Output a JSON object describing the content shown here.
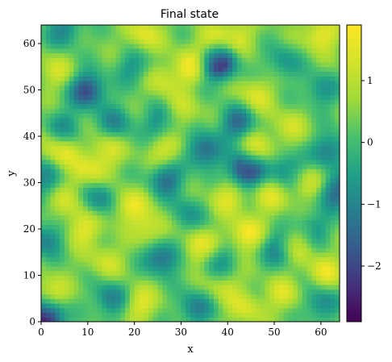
{
  "chart_data": {
    "type": "heatmap",
    "title": "Final state",
    "xlabel": "x",
    "ylabel": "y",
    "xlim": [
      0,
      64
    ],
    "ylim": [
      0,
      64
    ],
    "grid_size": [
      64,
      64
    ],
    "x_ticks": [
      0,
      10,
      20,
      30,
      40,
      50,
      60
    ],
    "y_ticks": [
      0,
      10,
      20,
      30,
      40,
      50,
      60
    ],
    "colormap": "viridis",
    "colorbar": {
      "range": [
        -2.9,
        1.9
      ],
      "ticks": [
        1,
        0,
        -1,
        -2
      ],
      "tick_labels": [
        "1",
        "0",
        "−1",
        "−2"
      ]
    },
    "field_features": [
      {
        "x": 38,
        "y": 56,
        "value": -2.7
      },
      {
        "x": 44,
        "y": 33,
        "value": -2.6
      },
      {
        "x": 1,
        "y": 1,
        "value": -2.9
      },
      {
        "x": 10,
        "y": 50,
        "value": -2.0
      },
      {
        "x": 35,
        "y": 37,
        "value": -1.6
      },
      {
        "x": 42,
        "y": 43,
        "value": -1.4
      },
      {
        "x": 27,
        "y": 31,
        "value": -1.4
      },
      {
        "x": 26,
        "y": 14,
        "value": -1.6
      },
      {
        "x": 63,
        "y": 28,
        "value": -1.5
      },
      {
        "x": 12,
        "y": 27,
        "value": -1.2
      },
      {
        "x": 15,
        "y": 5,
        "value": -1.2
      },
      {
        "x": 53,
        "y": 33,
        "value": -1.1
      },
      {
        "x": 62,
        "y": 37,
        "value": -1.2
      },
      {
        "x": 51,
        "y": 16,
        "value": -1.1
      },
      {
        "x": 26,
        "y": 43,
        "value": -1.0
      },
      {
        "x": 33,
        "y": 3,
        "value": -1.1
      },
      {
        "x": 5,
        "y": 63,
        "value": -1.0
      },
      {
        "x": 60,
        "y": 4,
        "value": -1.0
      },
      {
        "x": 38,
        "y": 13,
        "value": -0.9
      },
      {
        "x": 58,
        "y": 20,
        "value": -0.9
      },
      {
        "x": 5,
        "y": 42,
        "value": -0.8
      },
      {
        "x": 1,
        "y": 18,
        "value": -1.1
      },
      {
        "x": 16,
        "y": 43,
        "value": -0.9
      },
      {
        "x": 60,
        "y": 50,
        "value": -0.8
      },
      {
        "x": 20,
        "y": 55,
        "value": -0.7
      },
      {
        "x": 31,
        "y": 23,
        "value": -0.7
      },
      {
        "x": 52,
        "y": 56,
        "value": -0.7
      },
      {
        "x": 1,
        "y": 31,
        "value": -0.9
      },
      {
        "x": 34,
        "y": 16,
        "value": 1.8
      },
      {
        "x": 44,
        "y": 19,
        "value": 1.8
      },
      {
        "x": 32,
        "y": 55,
        "value": 1.7
      },
      {
        "x": 19,
        "y": 25,
        "value": 1.6
      },
      {
        "x": 10,
        "y": 32,
        "value": 1.6
      },
      {
        "x": 46,
        "y": 37,
        "value": 1.6
      },
      {
        "x": 60,
        "y": 62,
        "value": 1.7
      },
      {
        "x": 24,
        "y": 20,
        "value": 1.5
      },
      {
        "x": 4,
        "y": 37,
        "value": 1.6
      },
      {
        "x": 37,
        "y": 60,
        "value": 1.5
      },
      {
        "x": 9,
        "y": 20,
        "value": 1.5
      },
      {
        "x": 55,
        "y": 17,
        "value": 1.6
      },
      {
        "x": 21,
        "y": 4,
        "value": 1.5
      },
      {
        "x": 2,
        "y": 6,
        "value": 1.5
      },
      {
        "x": 57,
        "y": 30,
        "value": 1.5
      },
      {
        "x": 40,
        "y": 27,
        "value": 1.4
      },
      {
        "x": 22,
        "y": 62,
        "value": 1.5
      },
      {
        "x": 61,
        "y": 11,
        "value": 1.5
      },
      {
        "x": 46,
        "y": 49,
        "value": 1.4
      },
      {
        "x": 27,
        "y": 37,
        "value": 1.5
      },
      {
        "x": 14,
        "y": 37,
        "value": 1.4
      },
      {
        "x": 6,
        "y": 26,
        "value": 1.3
      },
      {
        "x": 44,
        "y": 3,
        "value": 1.3
      },
      {
        "x": 3,
        "y": 54,
        "value": 1.2
      },
      {
        "x": 30,
        "y": 45,
        "value": 1.3
      },
      {
        "x": 49,
        "y": 27,
        "value": 1.3
      },
      {
        "x": 53,
        "y": 42,
        "value": 1.2
      },
      {
        "x": 42,
        "y": 62,
        "value": 1.3
      },
      {
        "x": 26,
        "y": 52,
        "value": 1.2
      },
      {
        "x": 52,
        "y": 6,
        "value": 1.3
      },
      {
        "x": 39,
        "y": 8,
        "value": 1.2
      },
      {
        "x": 14,
        "y": 13,
        "value": 1.2
      }
    ]
  }
}
